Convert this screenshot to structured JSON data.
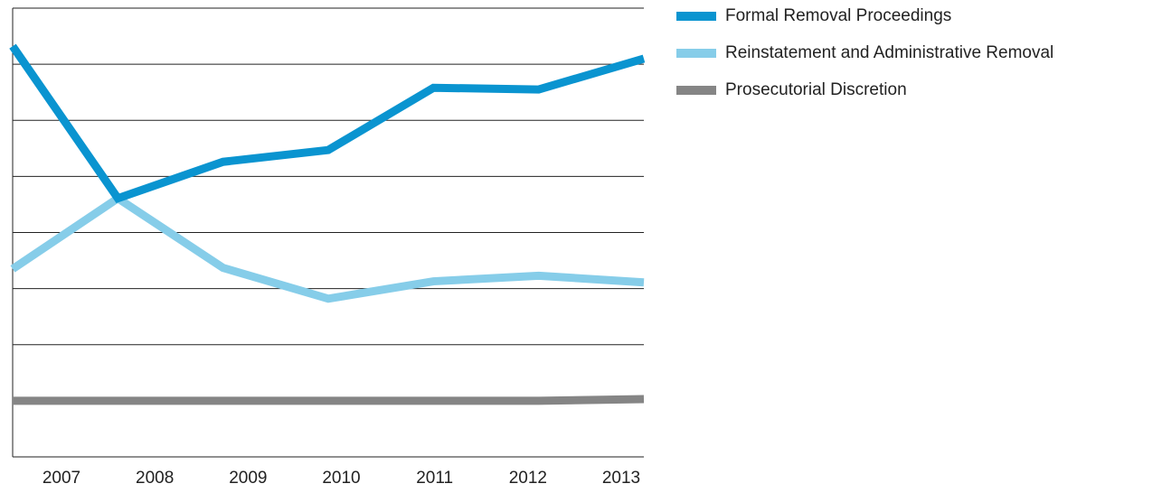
{
  "chart_data": {
    "type": "line",
    "x": [
      "2007",
      "2008",
      "2009",
      "2010",
      "2011",
      "2012",
      "2013"
    ],
    "series": [
      {
        "name": "Formal Removal Proceedings",
        "color": "#0a94d0",
        "values": [
          7.32,
          4.61,
          5.26,
          5.47,
          6.58,
          6.55,
          7.1
        ]
      },
      {
        "name": "Reinstatement and Administrative Removal",
        "color": "#86cde9",
        "values": [
          3.35,
          4.61,
          3.37,
          2.82,
          3.13,
          3.23,
          3.11
        ]
      },
      {
        "name": "Prosecutorial Discretion",
        "color": "#858585",
        "values": [
          1.0,
          1.0,
          1.0,
          1.0,
          1.0,
          1.0,
          1.03
        ]
      }
    ],
    "ylim": [
      0,
      8
    ],
    "yticks": [
      0,
      1,
      2,
      3,
      4,
      5,
      6,
      7,
      8
    ],
    "grid": true,
    "legend": "right"
  }
}
